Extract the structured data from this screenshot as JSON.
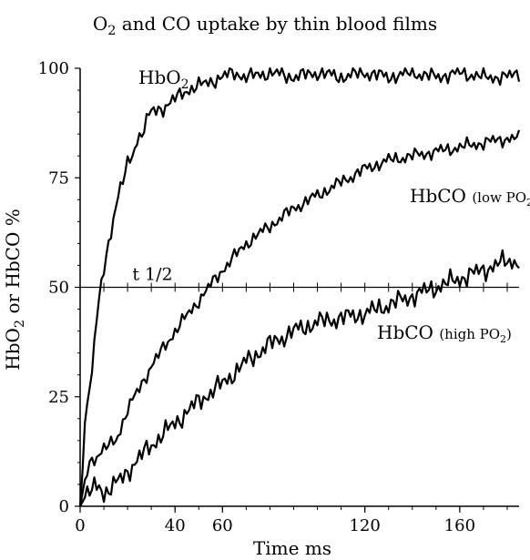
{
  "chart_data": {
    "type": "line",
    "title_main": "and CO uptake by thin blood films",
    "title_o": "O",
    "title_sub": "2",
    "ylabel_hbo": "HbO",
    "ylabel_sub": "2",
    "ylabel_rest": " or HbCO %",
    "xlabel": "Time ms",
    "xlim": [
      0,
      185
    ],
    "ylim": [
      0,
      100
    ],
    "x_ticks": [
      0,
      40,
      60,
      120,
      160
    ],
    "x_tick_labels": [
      "0",
      "40",
      "60",
      "120",
      "160"
    ],
    "y_ticks": [
      0,
      25,
      50,
      75,
      100
    ],
    "y_tick_labels": [
      "0",
      "25",
      "50",
      "75",
      "100"
    ],
    "half_line": {
      "y": 50,
      "label": "t 1/2"
    },
    "series": [
      {
        "name": "HbO2",
        "label_main": "HbO",
        "label_sub": "2",
        "x": [
          0,
          1,
          2,
          4,
          6,
          8,
          10,
          12,
          14,
          16,
          18,
          20,
          22,
          24,
          26,
          28,
          30,
          35,
          40,
          45,
          50,
          55,
          60,
          65,
          70,
          80,
          90,
          100,
          110,
          120,
          130,
          140,
          150,
          160,
          170,
          180,
          185
        ],
        "y": [
          0,
          8,
          19,
          27,
          37,
          47,
          54,
          60,
          66,
          71,
          74,
          78,
          80,
          84,
          85,
          88,
          90,
          91,
          93,
          95,
          96,
          97,
          98,
          99,
          98,
          99,
          98,
          99,
          98,
          99,
          98,
          99,
          98,
          99,
          98,
          98,
          99
        ]
      },
      {
        "name": "HbCO (low PO2)",
        "label_main": "HbCO",
        "label_small": "(low PO",
        "label_sub": "2",
        "label_close": ")",
        "x": [
          0,
          2,
          4,
          6,
          10,
          15,
          20,
          25,
          30,
          40,
          50,
          60,
          70,
          80,
          90,
          100,
          110,
          120,
          130,
          140,
          150,
          160,
          170,
          180,
          185
        ],
        "y": [
          0,
          6,
          10,
          11,
          13,
          15,
          22,
          27,
          32,
          40,
          47,
          54,
          60,
          64,
          68,
          71,
          74,
          77,
          79,
          80,
          81,
          82,
          83,
          84,
          84
        ]
      },
      {
        "name": "HbCO (high PO2)",
        "label_main": "HbCO",
        "label_small": "(high PO",
        "label_sub": "2",
        "label_close": ")",
        "x": [
          0,
          2,
          4,
          6,
          8,
          10,
          15,
          20,
          25,
          30,
          40,
          50,
          60,
          70,
          80,
          90,
          100,
          110,
          120,
          130,
          140,
          150,
          160,
          170,
          180,
          185
        ],
        "y": [
          0,
          2,
          3,
          4,
          5,
          3,
          5,
          8,
          11,
          14,
          19,
          24,
          28,
          33,
          37,
          40,
          42,
          43,
          44,
          46,
          48,
          50,
          52,
          54,
          56,
          56
        ]
      }
    ]
  }
}
